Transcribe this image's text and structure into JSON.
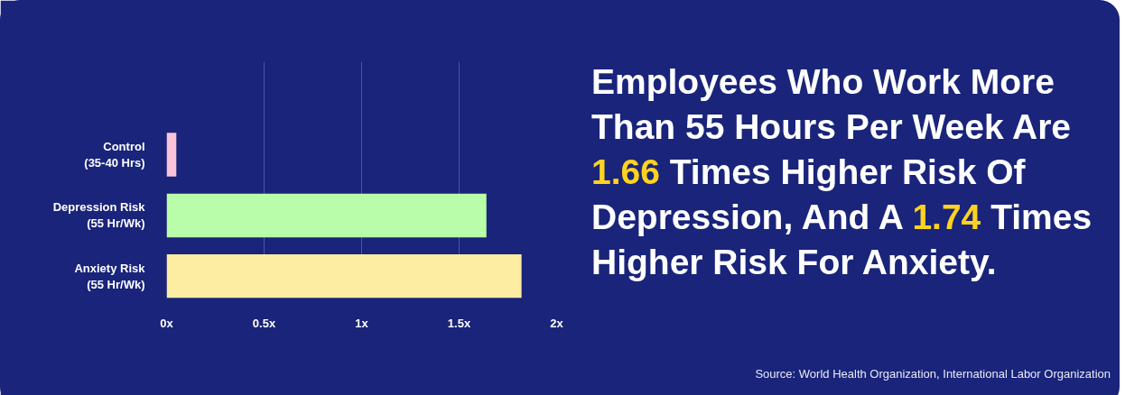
{
  "chart_data": {
    "type": "bar",
    "orientation": "horizontal",
    "title": "Employees Who Work More Than 55 Hours Per Week Are 1.66 Times Higher Risk Of Depression, And A 1.74 Times Higher Risk For Anxiety.",
    "categories": [
      "Control\n(35-40 Hrs)",
      "Depression Risk\n(55 Hr/Wk)",
      "Anxiety Risk\n(55 Hr/Wk)"
    ],
    "values": [
      0.05,
      1.64,
      1.82
    ],
    "colors": [
      "#f9c3d8",
      "#b9fca9",
      "#fdeda2"
    ],
    "xlim": [
      0,
      2
    ],
    "xticks": [
      {
        "value": 0,
        "label": "0x"
      },
      {
        "value": 0.5,
        "label": "0.5x"
      },
      {
        "value": 1,
        "label": "1x"
      },
      {
        "value": 1.5,
        "label": "1.5x"
      },
      {
        "value": 2,
        "label": "2x"
      }
    ],
    "grid": "x",
    "annotations": [
      "Source: World Health Organization, International Labor Organization"
    ]
  }
}
